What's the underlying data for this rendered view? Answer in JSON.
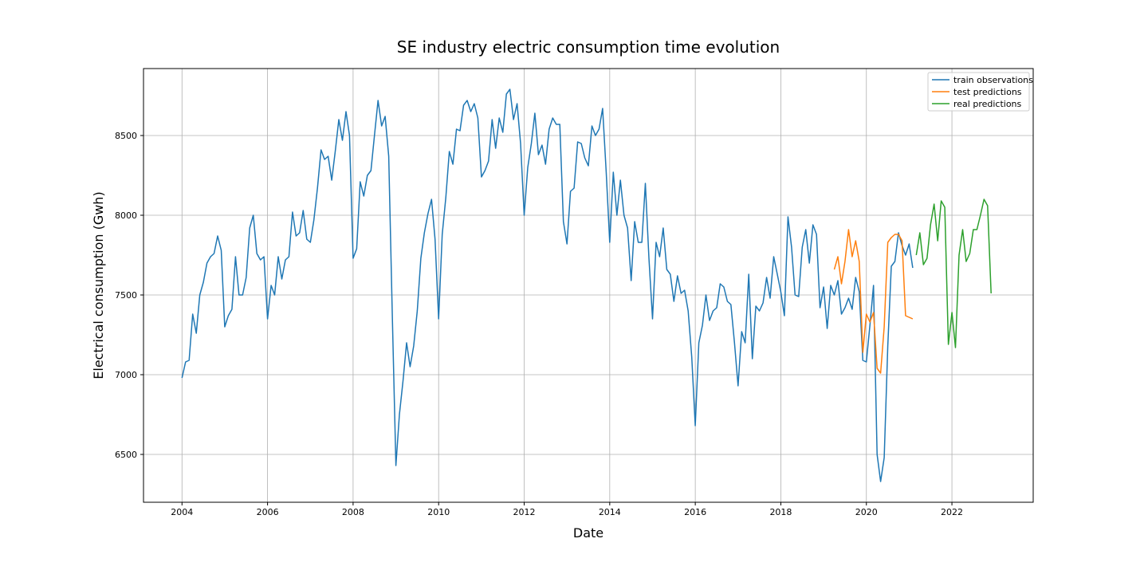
{
  "chart_data": {
    "type": "line",
    "title": "SE industry electric consumption time evolution",
    "xlabel": "Date",
    "ylabel": "Electrical consumption (Gwh)",
    "xlim": [
      2003.1,
      2023.9
    ],
    "ylim": [
      6200,
      8920
    ],
    "grid": true,
    "legend_position": "upper-right",
    "x_ticks": [
      2004,
      2006,
      2008,
      2010,
      2012,
      2014,
      2016,
      2018,
      2020,
      2022
    ],
    "y_ticks": [
      6500,
      7000,
      7500,
      8000,
      8500
    ],
    "series": [
      {
        "name": "train observations",
        "color": "#1f77b4",
        "start_year": 2004,
        "values": [
          6980,
          7080,
          7090,
          7380,
          7260,
          7500,
          7580,
          7700,
          7740,
          7760,
          7870,
          7780,
          7300,
          7370,
          7410,
          7740,
          7500,
          7500,
          7610,
          7920,
          8000,
          7760,
          7720,
          7740,
          7350,
          7560,
          7500,
          7740,
          7600,
          7720,
          7740,
          8020,
          7870,
          7890,
          8030,
          7850,
          7830,
          7970,
          8170,
          8410,
          8350,
          8370,
          8220,
          8400,
          8600,
          8470,
          8650,
          8500,
          7730,
          7790,
          8210,
          8120,
          8250,
          8280,
          8500,
          8720,
          8560,
          8620,
          8370,
          7370,
          6430,
          6750,
          6960,
          7200,
          7050,
          7180,
          7400,
          7730,
          7890,
          8010,
          8100,
          7850,
          7350,
          7880,
          8110,
          8400,
          8320,
          8540,
          8530,
          8690,
          8720,
          8650,
          8700,
          8610,
          8240,
          8280,
          8340,
          8600,
          8420,
          8610,
          8520,
          8760,
          8790,
          8600,
          8700,
          8450,
          8000,
          8300,
          8450,
          8640,
          8380,
          8440,
          8320,
          8540,
          8610,
          8570,
          8570,
          7960,
          7820,
          8150,
          8170,
          8460,
          8450,
          8360,
          8310,
          8560,
          8500,
          8540,
          8670,
          8270,
          7830,
          8270,
          8000,
          8220,
          8000,
          7920,
          7590,
          7960,
          7830,
          7830,
          8200,
          7730,
          7350,
          7830,
          7740,
          7920,
          7660,
          7630,
          7460,
          7620,
          7510,
          7530,
          7400,
          7110,
          6680,
          7200,
          7310,
          7500,
          7340,
          7400,
          7420,
          7570,
          7550,
          7460,
          7440,
          7200,
          6930,
          7270,
          7200,
          7630,
          7100,
          7430,
          7400,
          7450,
          7610,
          7480,
          7740,
          7630,
          7520,
          7370,
          7990,
          7800,
          7500,
          7490,
          7800,
          7910,
          7700,
          7940,
          7880,
          7420,
          7550,
          7290,
          7560,
          7500,
          7590,
          7380,
          7420,
          7480,
          7410,
          7610,
          7520,
          7090,
          7080,
          7310,
          7560,
          6500,
          6330,
          6480,
          7180,
          7680,
          7710,
          7890,
          7810,
          7750,
          7820,
          7670
        ]
      },
      {
        "name": "test predictions",
        "color": "#ff7f0e",
        "start_year": 2019.25,
        "values": [
          7660,
          7740,
          7570,
          7710,
          7910,
          7740,
          7840,
          7710,
          7140,
          7380,
          7330,
          7390,
          7040,
          7010,
          7300,
          7830,
          7860,
          7880,
          7880,
          7840,
          7370,
          7360,
          7350
        ]
      },
      {
        "name": "real predictions",
        "color": "#2ca02c",
        "start_year": 2021.1667,
        "values": [
          7750,
          7890,
          7690,
          7730,
          7940,
          8070,
          7840,
          8090,
          8050,
          7190,
          7390,
          7170,
          7750,
          7910,
          7710,
          7760,
          7910,
          7910,
          8000,
          8100,
          8060,
          7510
        ]
      }
    ]
  }
}
